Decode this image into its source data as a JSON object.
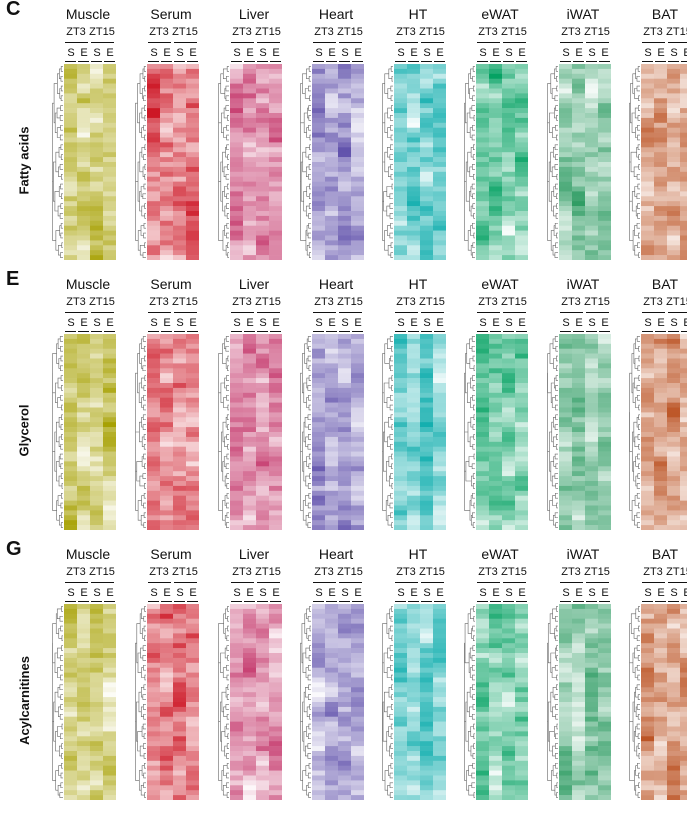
{
  "panels": [
    {
      "letter": "C",
      "row_label": "Fatty acids",
      "seed": 11
    },
    {
      "letter": "E",
      "row_label": "Glycerol",
      "seed": 47
    },
    {
      "letter": "G",
      "row_label": "Acylcarnitines",
      "seed": 83
    }
  ],
  "tissues": [
    {
      "name": "Muscle",
      "color": "#a6a000"
    },
    {
      "name": "Serum",
      "color": "#c80010"
    },
    {
      "name": "Liver",
      "color": "#c02860"
    },
    {
      "name": "Heart",
      "color": "#5a4aa8"
    },
    {
      "name": "HT",
      "color": "#00a8a8"
    },
    {
      "name": "eWAT",
      "color": "#00a060"
    },
    {
      "name": "iWAT",
      "color": "#2a9a60"
    },
    {
      "name": "BAT",
      "color": "#b84a18"
    }
  ],
  "zt_labels": [
    "ZT3",
    "ZT15"
  ],
  "condition_labels": [
    "S",
    "E",
    "S",
    "E"
  ]
}
